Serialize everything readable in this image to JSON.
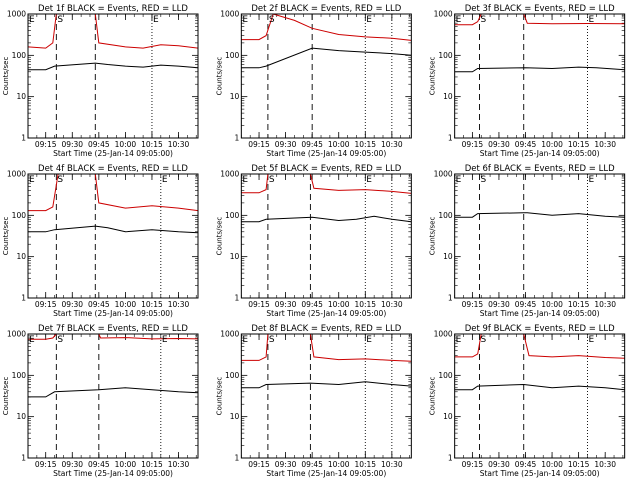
{
  "chart_data": {
    "type": "line",
    "yscale": "log",
    "ylim": [
      1,
      1000
    ],
    "xlim": [
      "09:05",
      "10:41"
    ],
    "ylabel": "Counts/sec",
    "xlabel": "Start Time (25-Jan-14 09:05:00)",
    "x_ticks": [
      "09:15",
      "09:30",
      "09:45",
      "10:00",
      "10:15",
      "10:30"
    ],
    "y_ticks": [
      "1",
      "10",
      "100",
      "1000"
    ],
    "series_colors": {
      "events": "#000000",
      "lld": "#cc0000"
    },
    "panels": [
      {
        "title": "Det 1f BLACK = Events, RED = LLD",
        "markers": [
          {
            "label": "E",
            "time": "09:05"
          },
          {
            "label": "S",
            "time": "09:21"
          },
          {
            "label": "E",
            "time": "10:15"
          }
        ],
        "dashed_lines": [
          "09:21",
          "09:43"
        ],
        "dotted_lines": [
          "10:15"
        ],
        "events": {
          "time": [
            "09:05",
            "09:15",
            "09:20",
            "09:43",
            "09:50",
            "10:00",
            "10:10",
            "10:20",
            "10:30",
            "10:41"
          ],
          "counts": [
            45,
            45,
            55,
            65,
            60,
            55,
            52,
            58,
            55,
            50
          ]
        },
        "lld": {
          "time": [
            "09:05",
            "09:15",
            "09:19",
            "09:21",
            "09:43",
            "09:45",
            "10:00",
            "10:10",
            "10:20",
            "10:30",
            "10:41"
          ],
          "counts": [
            160,
            150,
            200,
            1000,
            1000,
            200,
            160,
            150,
            180,
            170,
            150
          ]
        }
      },
      {
        "title": "Det 2f BLACK = Events, RED = LLD",
        "markers": [
          {
            "label": "E",
            "time": "09:05"
          },
          {
            "label": "S",
            "time": "09:20"
          },
          {
            "label": "E",
            "time": "10:15"
          }
        ],
        "dashed_lines": [
          "09:20",
          "09:45"
        ],
        "dotted_lines": [
          "10:15",
          "10:30"
        ],
        "events": {
          "time": [
            "09:05",
            "09:15",
            "09:19",
            "09:45",
            "10:00",
            "10:15",
            "10:30",
            "10:41"
          ],
          "counts": [
            50,
            50,
            55,
            150,
            130,
            120,
            110,
            100
          ]
        },
        "lld": {
          "time": [
            "09:05",
            "09:15",
            "09:19",
            "09:23",
            "09:35",
            "09:45",
            "10:00",
            "10:15",
            "10:30",
            "10:41"
          ],
          "counts": [
            240,
            240,
            300,
            1000,
            700,
            450,
            320,
            280,
            260,
            230
          ]
        }
      },
      {
        "title": "Det 3f BLACK = Events, RED = LLD",
        "markers": [
          {
            "label": "E",
            "time": "09:05"
          },
          {
            "label": "S",
            "time": "09:19"
          },
          {
            "label": "E",
            "time": "10:20"
          }
        ],
        "dashed_lines": [
          "09:19",
          "09:44"
        ],
        "dotted_lines": [
          "10:20"
        ],
        "events": {
          "time": [
            "09:05",
            "09:15",
            "09:18",
            "09:45",
            "10:00",
            "10:15",
            "10:25",
            "10:41"
          ],
          "counts": [
            40,
            40,
            48,
            50,
            48,
            52,
            50,
            45
          ]
        },
        "lld": {
          "time": [
            "09:05",
            "09:15",
            "09:18",
            "09:20",
            "09:44",
            "09:46",
            "10:00",
            "10:20",
            "10:41"
          ],
          "counts": [
            550,
            550,
            650,
            1000,
            1000,
            600,
            580,
            590,
            580
          ]
        }
      },
      {
        "title": "Det 4f BLACK = Events, RED = LLD",
        "markers": [
          {
            "label": "E",
            "time": "09:05"
          },
          {
            "label": "S",
            "time": "09:21"
          },
          {
            "label": "E",
            "time": "10:20"
          }
        ],
        "dashed_lines": [
          "09:21",
          "09:43"
        ],
        "dotted_lines": [
          "10:20"
        ],
        "events": {
          "time": [
            "09:05",
            "09:15",
            "09:20",
            "09:43",
            "09:50",
            "10:00",
            "10:15",
            "10:30",
            "10:41"
          ],
          "counts": [
            40,
            40,
            45,
            55,
            50,
            40,
            45,
            40,
            38
          ]
        },
        "lld": {
          "time": [
            "09:05",
            "09:15",
            "09:19",
            "09:22",
            "09:43",
            "09:45",
            "10:00",
            "10:15",
            "10:30",
            "10:41"
          ],
          "counts": [
            130,
            130,
            160,
            1000,
            1000,
            200,
            150,
            170,
            150,
            130
          ]
        }
      },
      {
        "title": "Det 5f BLACK = Events, RED = LLD",
        "markers": [
          {
            "label": "E",
            "time": "09:05"
          },
          {
            "label": "S",
            "time": "09:20"
          },
          {
            "label": "E",
            "time": "10:15"
          }
        ],
        "dashed_lines": [
          "09:20",
          "09:44"
        ],
        "dotted_lines": [
          "10:15",
          "10:30"
        ],
        "events": {
          "time": [
            "09:05",
            "09:15",
            "09:19",
            "09:45",
            "10:00",
            "10:10",
            "10:20",
            "10:30",
            "10:41"
          ],
          "counts": [
            70,
            70,
            80,
            90,
            75,
            80,
            95,
            80,
            70
          ]
        },
        "lld": {
          "time": [
            "09:05",
            "09:15",
            "09:19",
            "09:20",
            "09:44",
            "09:46",
            "10:00",
            "10:15",
            "10:30",
            "10:41"
          ],
          "counts": [
            350,
            350,
            420,
            1000,
            1000,
            450,
            400,
            420,
            380,
            340
          ]
        }
      },
      {
        "title": "Det 6f BLACK = Events, RED = LLD",
        "markers": [
          {
            "label": "E",
            "time": "09:05"
          },
          {
            "label": "S",
            "time": "09:19"
          },
          {
            "label": "E",
            "time": "10:20"
          }
        ],
        "dashed_lines": [
          "09:19",
          "09:44"
        ],
        "dotted_lines": [
          "10:20"
        ],
        "events": {
          "time": [
            "09:05",
            "09:15",
            "09:18",
            "09:44",
            "09:46",
            "10:00",
            "10:15",
            "10:30",
            "10:41"
          ],
          "counts": [
            90,
            90,
            110,
            115,
            115,
            100,
            110,
            95,
            90
          ]
        },
        "lld": {
          "time": [],
          "counts": []
        }
      },
      {
        "title": "Det 7f BLACK = Events, RED = LLD",
        "markers": [
          {
            "label": "E",
            "time": "09:05"
          },
          {
            "label": "S",
            "time": "09:21"
          },
          {
            "label": "E",
            "time": "10:20"
          }
        ],
        "dashed_lines": [
          "09:21",
          "09:45"
        ],
        "dotted_lines": [
          "10:20"
        ],
        "events": {
          "time": [
            "09:05",
            "09:15",
            "09:20",
            "09:45",
            "10:00",
            "10:15",
            "10:30",
            "10:41"
          ],
          "counts": [
            30,
            30,
            40,
            45,
            50,
            45,
            40,
            38
          ]
        },
        "lld": {
          "time": [
            "09:05",
            "09:15",
            "09:19",
            "09:21",
            "09:45",
            "09:46",
            "10:00",
            "10:15",
            "10:30",
            "10:41"
          ],
          "counts": [
            750,
            750,
            800,
            1000,
            1000,
            800,
            820,
            760,
            780,
            760
          ]
        }
      },
      {
        "title": "Det 8f BLACK = Events, RED = LLD",
        "markers": [
          {
            "label": "E",
            "time": "09:05"
          },
          {
            "label": "S",
            "time": "09:20"
          },
          {
            "label": "E",
            "time": "10:15"
          }
        ],
        "dashed_lines": [
          "09:20",
          "09:44"
        ],
        "dotted_lines": [
          "10:15",
          "10:30"
        ],
        "events": {
          "time": [
            "09:05",
            "09:15",
            "09:19",
            "09:44",
            "10:00",
            "10:15",
            "10:30",
            "10:41"
          ],
          "counts": [
            50,
            50,
            60,
            65,
            60,
            70,
            60,
            55
          ]
        },
        "lld": {
          "time": [
            "09:05",
            "09:15",
            "09:19",
            "09:20",
            "09:44",
            "09:46",
            "10:00",
            "10:15",
            "10:30",
            "10:41"
          ],
          "counts": [
            230,
            230,
            280,
            1000,
            1000,
            280,
            240,
            250,
            230,
            220
          ]
        }
      },
      {
        "title": "Det 9f BLACK = Events, RED = LLD",
        "markers": [
          {
            "label": "E",
            "time": "09:05"
          },
          {
            "label": "S",
            "time": "09:19"
          },
          {
            "label": "E",
            "time": "10:20"
          }
        ],
        "dashed_lines": [
          "09:19",
          "09:44"
        ],
        "dotted_lines": [
          "10:20"
        ],
        "events": {
          "time": [
            "09:05",
            "09:15",
            "09:18",
            "09:44",
            "10:00",
            "10:15",
            "10:30",
            "10:41"
          ],
          "counts": [
            45,
            45,
            55,
            60,
            50,
            55,
            50,
            45
          ]
        },
        "lld": {
          "time": [
            "09:05",
            "09:15",
            "09:18",
            "09:20",
            "09:44",
            "09:47",
            "10:00",
            "10:15",
            "10:30",
            "10:41"
          ],
          "counts": [
            280,
            280,
            330,
            1000,
            1000,
            300,
            280,
            300,
            270,
            260
          ]
        }
      }
    ]
  }
}
